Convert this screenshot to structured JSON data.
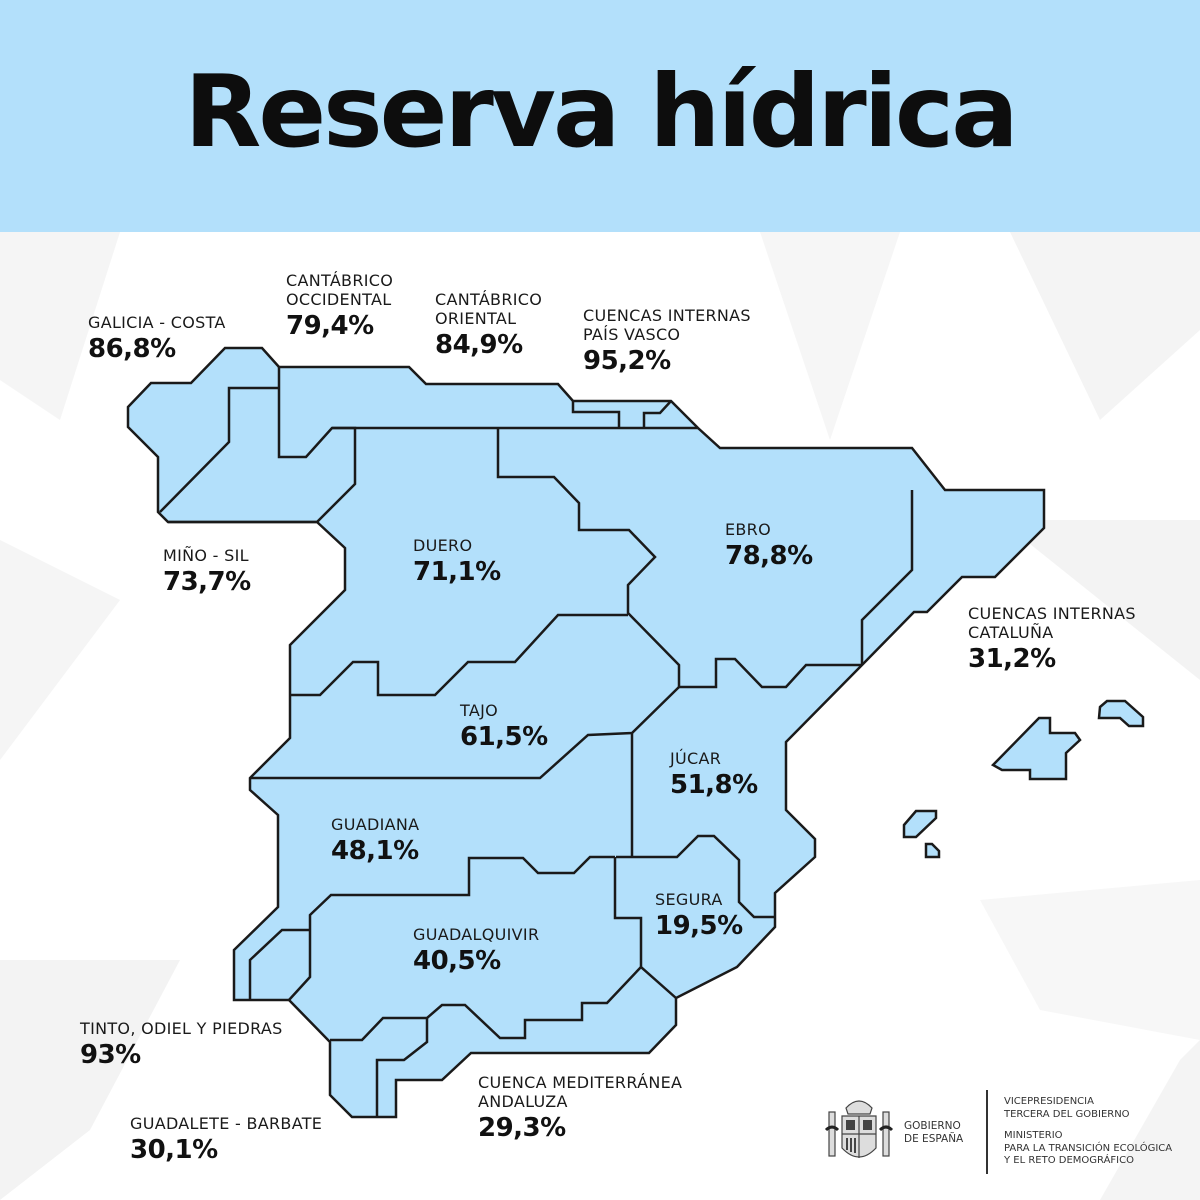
{
  "header": {
    "title": "Reserva hídrica"
  },
  "colors": {
    "header_bg": "#b3e0fb",
    "region_fill": "#b3e0fb",
    "border": "#1a1a1a"
  },
  "basins": [
    {
      "id": "galicia-costa",
      "name": "GALICIA - COSTA",
      "value": "86,8%"
    },
    {
      "id": "cantabrico-occidental",
      "name": "CANTÁBRICO\nOCCIDENTAL",
      "value": "79,4%"
    },
    {
      "id": "cantabrico-oriental",
      "name": "CANTÁBRICO\nORIENTAL",
      "value": "84,9%"
    },
    {
      "id": "cuencas-internas-pais-vasco",
      "name": "CUENCAS INTERNAS\nPAÍS VASCO",
      "value": "95,2%"
    },
    {
      "id": "mino-sil",
      "name": "MIÑO - SIL",
      "value": "73,7%"
    },
    {
      "id": "duero",
      "name": "DUERO",
      "value": "71,1%"
    },
    {
      "id": "ebro",
      "name": "EBRO",
      "value": "78,8%"
    },
    {
      "id": "cuencas-internas-cataluna",
      "name": "CUENCAS INTERNAS\nCATALUÑA",
      "value": "31,2%"
    },
    {
      "id": "tajo",
      "name": "TAJO",
      "value": "61,5%"
    },
    {
      "id": "jucar",
      "name": "JÚCAR",
      "value": "51,8%"
    },
    {
      "id": "guadiana",
      "name": "GUADIANA",
      "value": "48,1%"
    },
    {
      "id": "segura",
      "name": "SEGURA",
      "value": "19,5%"
    },
    {
      "id": "guadalquivir",
      "name": "GUADALQUIVIR",
      "value": "40,5%"
    },
    {
      "id": "tinto-odiel-piedras",
      "name": "TINTO, ODIEL Y PIEDRAS",
      "value": "93%"
    },
    {
      "id": "cuenca-mediterranea-andaluza",
      "name": "CUENCA MEDITERRÁNEA\nANDALUZA",
      "value": "29,3%"
    },
    {
      "id": "guadalete-barbate",
      "name": "GUADALETE - BARBATE",
      "value": "30,1%"
    }
  ],
  "footer": {
    "logo_icon": "coat-of-arms-of-spain",
    "gobierno": "GOBIERNO\nDE ESPAÑA",
    "vicepresidencia": "VICEPRESIDENCIA\nTERCERA DEL GOBIERNO",
    "ministerio": "MINISTERIO\nPARA LA TRANSICIÓN ECOLÓGICA\nY EL RETO DEMOGRÁFICO"
  }
}
